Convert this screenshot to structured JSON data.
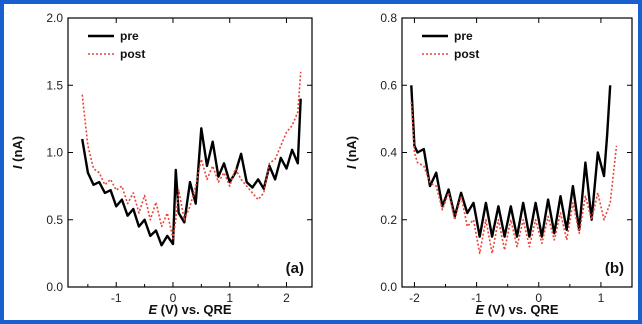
{
  "colors": {
    "frame": "#1a5fd0",
    "pre": "#000000",
    "post": "#e8463a"
  },
  "chart_data": [
    {
      "type": "line",
      "panel_label": "(a)",
      "xlabel_var": "E",
      "xlabel_rest": " (V) vs. QRE",
      "ylabel_var": "I",
      "ylabel_rest": " (nA)",
      "xlim": [
        -1.85,
        2.45
      ],
      "ylim": [
        0.0,
        2.0
      ],
      "xticks": [
        -1,
        0,
        1,
        2
      ],
      "yticks": [
        0.0,
        0.5,
        1.0,
        1.5,
        2.0
      ],
      "ytick_labels": [
        "0.0",
        "0.5",
        "1.0",
        "1.5",
        "2.0"
      ],
      "legend": [
        "pre",
        "post"
      ],
      "series": [
        {
          "name": "pre",
          "x": [
            -1.6,
            -1.5,
            -1.4,
            -1.3,
            -1.2,
            -1.1,
            -1.0,
            -0.9,
            -0.8,
            -0.7,
            -0.6,
            -0.5,
            -0.4,
            -0.3,
            -0.2,
            -0.1,
            0.0,
            0.05,
            0.1,
            0.2,
            0.3,
            0.4,
            0.5,
            0.6,
            0.7,
            0.8,
            0.9,
            1.0,
            1.1,
            1.2,
            1.3,
            1.4,
            1.5,
            1.6,
            1.7,
            1.8,
            1.9,
            2.0,
            2.1,
            2.2,
            2.25
          ],
          "y": [
            1.1,
            0.85,
            0.76,
            0.78,
            0.7,
            0.72,
            0.6,
            0.65,
            0.53,
            0.58,
            0.45,
            0.5,
            0.38,
            0.42,
            0.31,
            0.38,
            0.32,
            0.87,
            0.55,
            0.48,
            0.78,
            0.62,
            1.18,
            0.9,
            1.08,
            0.82,
            0.92,
            0.78,
            0.85,
            0.99,
            0.78,
            0.74,
            0.8,
            0.73,
            0.9,
            0.8,
            0.96,
            0.88,
            1.02,
            0.92,
            1.4
          ]
        },
        {
          "name": "post",
          "x": [
            -1.6,
            -1.5,
            -1.4,
            -1.3,
            -1.2,
            -1.1,
            -1.0,
            -0.9,
            -0.8,
            -0.7,
            -0.6,
            -0.5,
            -0.4,
            -0.3,
            -0.2,
            -0.1,
            0.0,
            0.05,
            0.1,
            0.2,
            0.3,
            0.4,
            0.5,
            0.6,
            0.7,
            0.8,
            0.9,
            1.0,
            1.1,
            1.2,
            1.3,
            1.4,
            1.5,
            1.6,
            1.7,
            1.8,
            1.9,
            2.0,
            2.1,
            2.2,
            2.25
          ],
          "y": [
            1.43,
            1.05,
            0.88,
            0.85,
            0.76,
            0.8,
            0.72,
            0.75,
            0.62,
            0.7,
            0.55,
            0.68,
            0.5,
            0.63,
            0.45,
            0.55,
            0.36,
            0.5,
            0.72,
            0.5,
            0.6,
            0.75,
            0.95,
            0.8,
            0.9,
            0.78,
            0.85,
            0.75,
            0.88,
            0.8,
            0.75,
            0.7,
            0.65,
            0.7,
            0.92,
            0.95,
            1.05,
            1.15,
            1.2,
            1.3,
            1.6
          ]
        }
      ]
    },
    {
      "type": "line",
      "panel_label": "(b)",
      "xlabel_var": "E",
      "xlabel_rest": " (V) vs. QRE",
      "ylabel_var": "I",
      "ylabel_rest": " (nA)",
      "xlim": [
        -2.2,
        1.5
      ],
      "ylim": [
        0.0,
        0.8
      ],
      "xticks": [
        -2,
        -1,
        0,
        1
      ],
      "yticks": [
        0.0,
        0.2,
        0.4,
        0.6,
        0.8
      ],
      "ytick_labels": [
        "0.0",
        "0.2",
        "0.4",
        "0.6",
        "0.8"
      ],
      "legend": [
        "pre",
        "post"
      ],
      "series": [
        {
          "name": "pre",
          "x": [
            -2.05,
            -2.0,
            -1.95,
            -1.85,
            -1.75,
            -1.65,
            -1.55,
            -1.45,
            -1.35,
            -1.25,
            -1.15,
            -1.05,
            -0.95,
            -0.85,
            -0.75,
            -0.65,
            -0.55,
            -0.45,
            -0.35,
            -0.25,
            -0.15,
            -0.05,
            0.05,
            0.15,
            0.25,
            0.35,
            0.45,
            0.55,
            0.65,
            0.75,
            0.85,
            0.95,
            1.05,
            1.1,
            1.15
          ],
          "y": [
            0.6,
            0.42,
            0.4,
            0.41,
            0.3,
            0.34,
            0.24,
            0.29,
            0.21,
            0.28,
            0.22,
            0.25,
            0.15,
            0.25,
            0.15,
            0.24,
            0.15,
            0.24,
            0.15,
            0.25,
            0.15,
            0.25,
            0.15,
            0.26,
            0.16,
            0.27,
            0.17,
            0.3,
            0.17,
            0.37,
            0.2,
            0.4,
            0.33,
            0.45,
            0.6
          ]
        },
        {
          "name": "post",
          "x": [
            -2.05,
            -2.0,
            -1.95,
            -1.85,
            -1.75,
            -1.65,
            -1.55,
            -1.45,
            -1.35,
            -1.25,
            -1.15,
            -1.05,
            -0.95,
            -0.85,
            -0.75,
            -0.65,
            -0.55,
            -0.45,
            -0.35,
            -0.25,
            -0.15,
            -0.05,
            0.05,
            0.15,
            0.25,
            0.35,
            0.45,
            0.55,
            0.65,
            0.75,
            0.85,
            0.95,
            1.05,
            1.15,
            1.25
          ],
          "y": [
            0.55,
            0.4,
            0.37,
            0.36,
            0.31,
            0.3,
            0.23,
            0.28,
            0.2,
            0.27,
            0.18,
            0.2,
            0.1,
            0.2,
            0.1,
            0.2,
            0.11,
            0.2,
            0.12,
            0.2,
            0.12,
            0.2,
            0.13,
            0.21,
            0.14,
            0.22,
            0.14,
            0.25,
            0.16,
            0.27,
            0.2,
            0.28,
            0.2,
            0.25,
            0.42
          ]
        }
      ]
    }
  ]
}
